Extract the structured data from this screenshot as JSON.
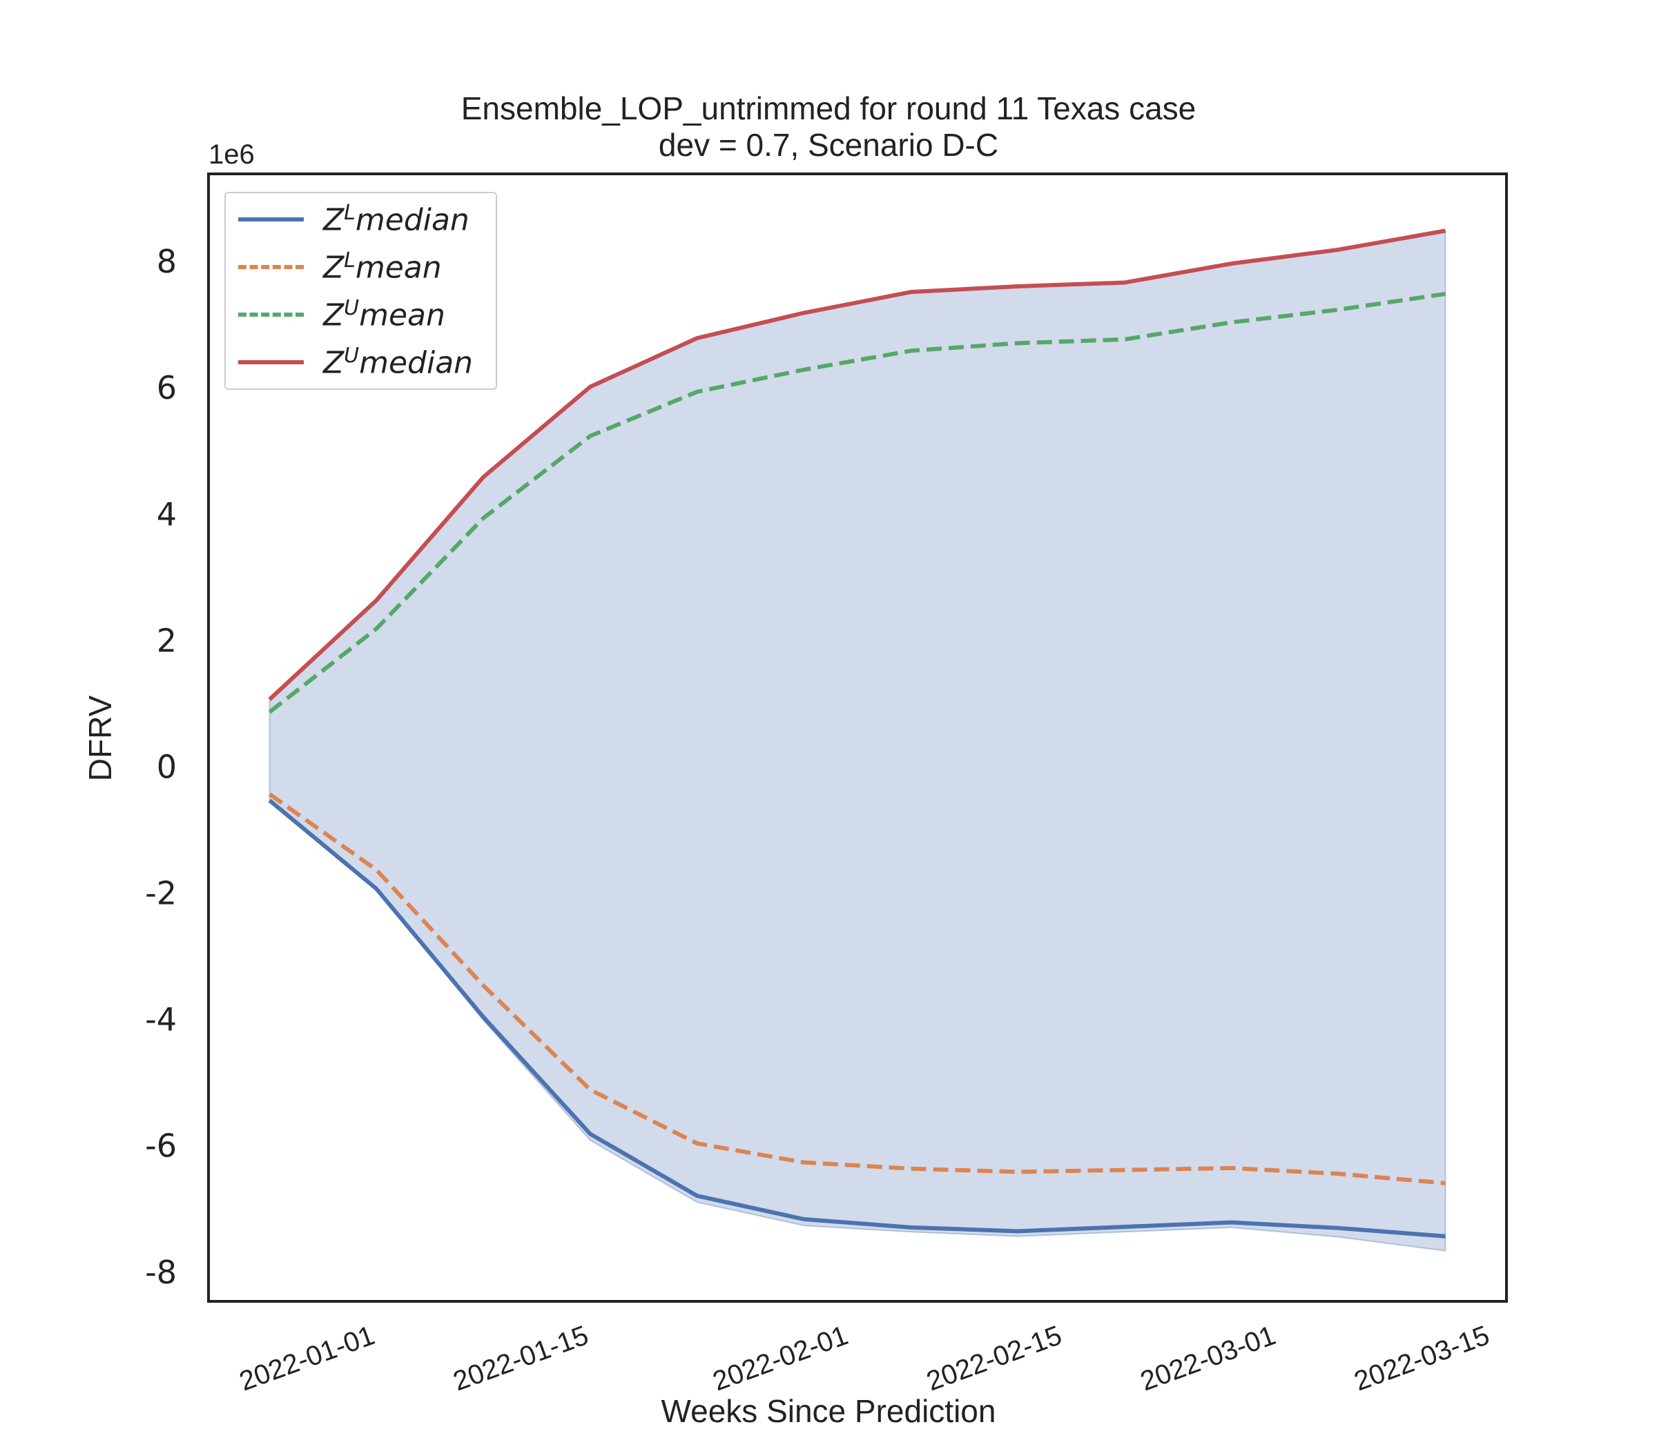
{
  "title_line1": "Ensemble_LOP_untrimmed for round 11 Texas case",
  "title_line2": "dev = 0.7, Scenario D-C",
  "offset_label": "1e6",
  "chart_data": {
    "type": "line",
    "title": "Ensemble_LOP_untrimmed for round 11 Texas case dev = 0.7, Scenario D-C",
    "xlabel": "Weeks Since Prediction",
    "ylabel": "DFRV",
    "y_scale_note": "1e6",
    "x": [
      "2021-12-25",
      "2022-01-01",
      "2022-01-08",
      "2022-01-15",
      "2022-01-22",
      "2022-01-29",
      "2022-02-05",
      "2022-02-12",
      "2022-02-19",
      "2022-02-26",
      "2022-03-05",
      "2022-03-12"
    ],
    "x_ticks": [
      "2022-01-01",
      "2022-01-15",
      "2022-02-01",
      "2022-02-15",
      "2022-03-01",
      "2022-03-15"
    ],
    "y_ticks": [
      -8,
      -6,
      -4,
      -2,
      0,
      2,
      4,
      6,
      8
    ],
    "ylim": [
      -8.45,
      9.4
    ],
    "xlim": [
      "2021-12-21",
      "2022-03-16"
    ],
    "grid": false,
    "legend_position": "upper-left",
    "series": [
      {
        "name": "Z^L median",
        "label_base": "Z",
        "label_sup": "L",
        "label_rest": "median",
        "style": "solid",
        "color": "#4c72b0",
        "values": [
          -0.52,
          -1.92,
          -3.95,
          -5.8,
          -6.78,
          -7.15,
          -7.28,
          -7.34,
          -7.27,
          -7.2,
          -7.29,
          -7.42
        ]
      },
      {
        "name": "Z^L mean",
        "label_base": "Z",
        "label_sup": "L",
        "label_rest": "mean",
        "style": "dashed",
        "color": "#dd8452",
        "values": [
          -0.42,
          -1.62,
          -3.45,
          -5.1,
          -5.95,
          -6.25,
          -6.35,
          -6.4,
          -6.37,
          -6.34,
          -6.43,
          -6.58
        ]
      },
      {
        "name": "Z^U mean",
        "label_base": "Z",
        "label_sup": "U",
        "label_rest": "mean",
        "style": "dashed",
        "color": "#55a868",
        "values": [
          0.88,
          2.2,
          3.95,
          5.25,
          5.95,
          6.3,
          6.6,
          6.72,
          6.78,
          7.05,
          7.25,
          7.5
        ]
      },
      {
        "name": "Z^U median",
        "label_base": "Z",
        "label_sup": "U",
        "label_rest": "median",
        "style": "solid",
        "color": "#c44e52",
        "values": [
          1.08,
          2.65,
          4.6,
          6.03,
          6.8,
          7.2,
          7.53,
          7.62,
          7.68,
          7.98,
          8.2,
          8.5
        ]
      }
    ],
    "band": {
      "color": "#4c72b0",
      "lower": [
        -0.52,
        -1.92,
        -4.0,
        -5.9,
        -6.88,
        -7.25,
        -7.35,
        -7.42,
        -7.35,
        -7.28,
        -7.43,
        -7.65
      ],
      "upper": [
        1.08,
        2.65,
        4.6,
        6.03,
        6.8,
        7.2,
        7.53,
        7.62,
        7.68,
        7.98,
        8.2,
        8.5
      ]
    }
  }
}
